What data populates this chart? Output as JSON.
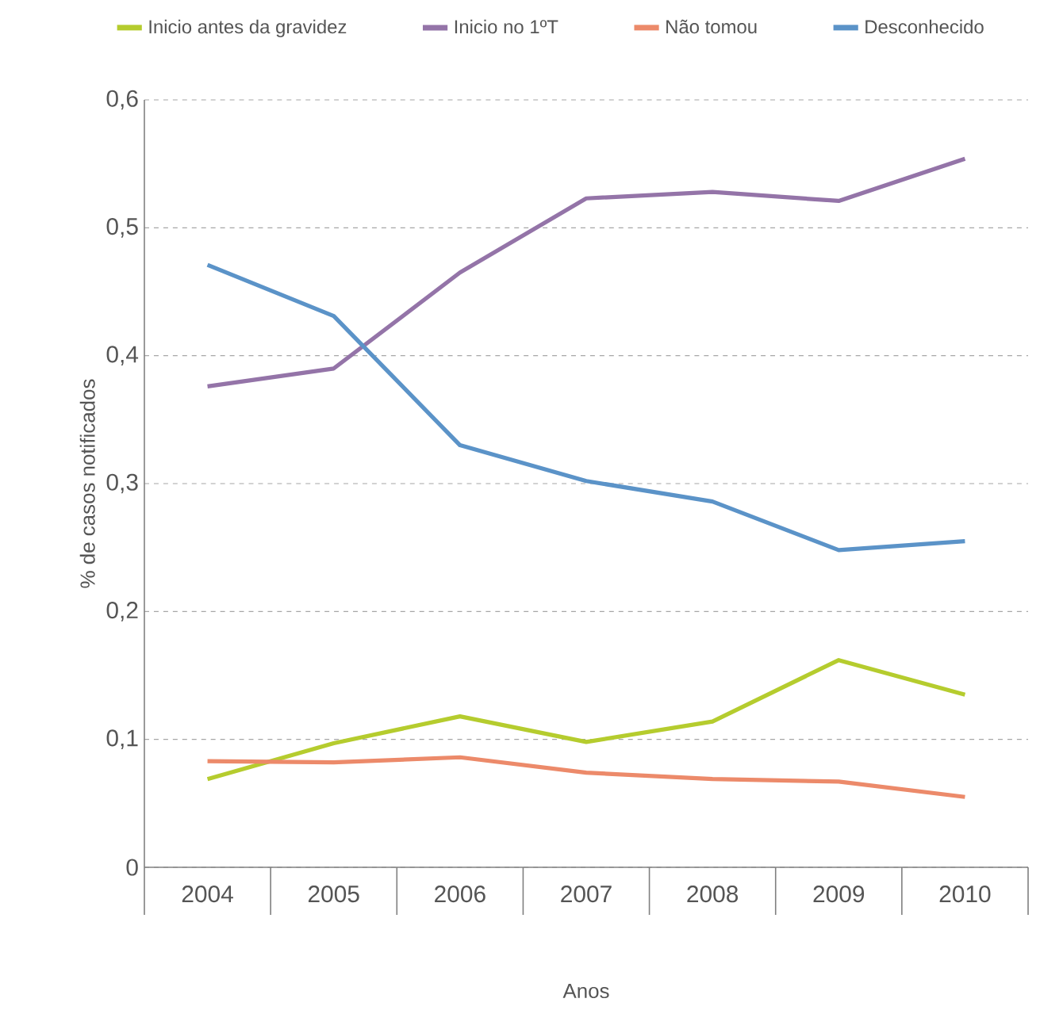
{
  "chart_data": {
    "type": "line",
    "xlabel": "Anos",
    "ylabel": "% de casos notificados",
    "categories": [
      "2004",
      "2005",
      "2006",
      "2007",
      "2008",
      "2009",
      "2010"
    ],
    "series": [
      {
        "name": "Inicio antes da gravidez",
        "color": "#b5cc2e",
        "values": [
          0.069,
          0.097,
          0.118,
          0.098,
          0.114,
          0.162,
          0.135
        ]
      },
      {
        "name": "Inicio no 1ºT",
        "color": "#9474a8",
        "values": [
          0.376,
          0.39,
          0.465,
          0.523,
          0.528,
          0.521,
          0.554
        ]
      },
      {
        "name": "Não tomou",
        "color": "#ec8a6a",
        "values": [
          0.083,
          0.082,
          0.086,
          0.074,
          0.069,
          0.067,
          0.055
        ]
      },
      {
        "name": "Desconhecido",
        "color": "#5b93c8",
        "values": [
          0.471,
          0.431,
          0.33,
          0.302,
          0.286,
          0.248,
          0.255
        ]
      }
    ],
    "ylim": [
      0,
      0.6
    ],
    "yticks": [
      0,
      {
        "value": 0.1,
        "label": "0,1"
      },
      {
        "value": 0.2,
        "label": "0,2"
      },
      {
        "value": 0.3,
        "label": "0,3"
      },
      {
        "value": 0.4,
        "label": "0,4"
      },
      {
        "value": 0.5,
        "label": "0,5"
      },
      {
        "value": 0.6,
        "label": "0,6"
      }
    ],
    "grid": "y",
    "legend": "top",
    "marker": "none",
    "line_style": "solid"
  }
}
